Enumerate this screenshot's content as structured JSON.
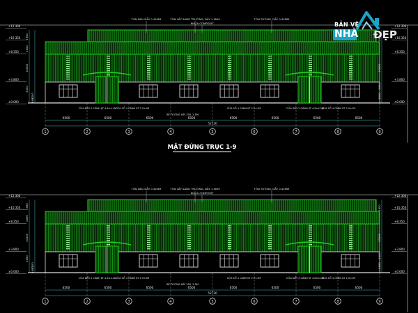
{
  "logo": {
    "line1": "BẢN VẼ",
    "line2a": "NHÀ",
    "line2b": "ĐẸP"
  },
  "drawing_title": "MẶT ĐỨNG TRỤC 1-9",
  "colors": {
    "background": "#000000",
    "wall_green": "#20d020",
    "line_white": "#e0e0e0",
    "dim_cyan": "#40c0d0",
    "logo_blue": "#1aa5c8"
  },
  "grid_axes": [
    "1",
    "2",
    "3",
    "4",
    "5",
    "6",
    "7",
    "8",
    "9"
  ],
  "bay_dims": [
    "6500",
    "6500",
    "6500",
    "6500",
    "6500",
    "6500",
    "6500",
    "6500"
  ],
  "total_dim": "52720",
  "level_marks": [
    "+12.300",
    "+10.350",
    "+8.350",
    "+3.800",
    "±0.000"
  ],
  "left_dims": [
    "1950",
    "2000",
    "10000",
    "2000",
    "3200",
    "3000"
  ],
  "right_dims": [
    "1950",
    "10000",
    "3000",
    "2500"
  ],
  "top_notes": [
    "TÔN NÂU DẦY 0.42MM",
    "TÔN LẤY SÁNG TRƯỜNG, DẦY 1.5MM",
    "NHỰA COMPOSIT",
    "TÔN TƯỜNG, DẦY 0.42MM"
  ],
  "bottom_notes": [
    "CỬA ĐẨY 2 CÁNH KT 4.8×4.2M",
    "CỬA SỔ 4 CÁNH KT 2.5×1M",
    "BỆ TƯỜNG XÂY 200, 2.5M",
    "CỬA SỔ 4 CÁNH KT 2.5×1M",
    "CỬA ĐẨY 2 CÁNH KT 4.8×4.2M",
    "CỬA SỔ 4 CÁNH KT 2.5×1M"
  ]
}
